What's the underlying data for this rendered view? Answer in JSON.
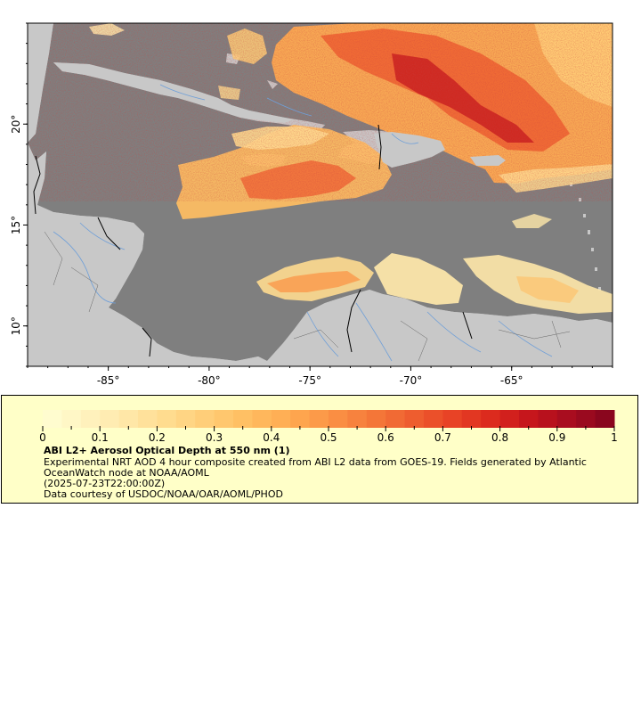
{
  "map": {
    "x_axis": {
      "ticks": [
        {
          "lon": -85,
          "label": "-85°"
        },
        {
          "lon": -80,
          "label": "-80°"
        },
        {
          "lon": -75,
          "label": "-75°"
        },
        {
          "lon": -70,
          "label": "-70°"
        },
        {
          "lon": -65,
          "label": "-65°"
        }
      ]
    },
    "y_axis": {
      "ticks": [
        {
          "lat": 10,
          "label": "10°"
        },
        {
          "lat": 15,
          "label": "15°"
        },
        {
          "lat": 20,
          "label": "20°"
        }
      ]
    },
    "extent": {
      "lon_min": -89,
      "lon_max": -60,
      "lat_min": 8,
      "lat_max": 25
    }
  },
  "colors": {
    "ocean": "#7f7f7f",
    "land": "#c8c8c8",
    "rivers": "#6f9fd8",
    "borders": "#000000",
    "legend_bg": "#ffffc8"
  },
  "colorbar": {
    "min": 0,
    "max": 1,
    "ticks": [
      "0",
      "0.1",
      "0.2",
      "0.3",
      "0.4",
      "0.5",
      "0.6",
      "0.7",
      "0.8",
      "0.9",
      "1"
    ],
    "palette": [
      "#ffffd4",
      "#fff3c0",
      "#ffe8aa",
      "#ffdc90",
      "#ffce78",
      "#ffbe62",
      "#ffac52",
      "#fb9446",
      "#f57a3a",
      "#ef6030",
      "#e84426",
      "#dc2a1e",
      "#c4141c",
      "#a40c20",
      "#82041e"
    ]
  },
  "legend": {
    "title": "ABI L2+ Aerosol Optical Depth at 550 nm (1)",
    "description": "Experimental NRT AOD 4 hour composite created from ABI L2 data from GOES-19. Fields generated by Atlantic OceanWatch node at NOAA/AOML",
    "time": "(2025-07-23T22:00:00Z)",
    "credit": "Data courtesy of USDOC/NOAA/OAR/AOML/PHOD"
  }
}
